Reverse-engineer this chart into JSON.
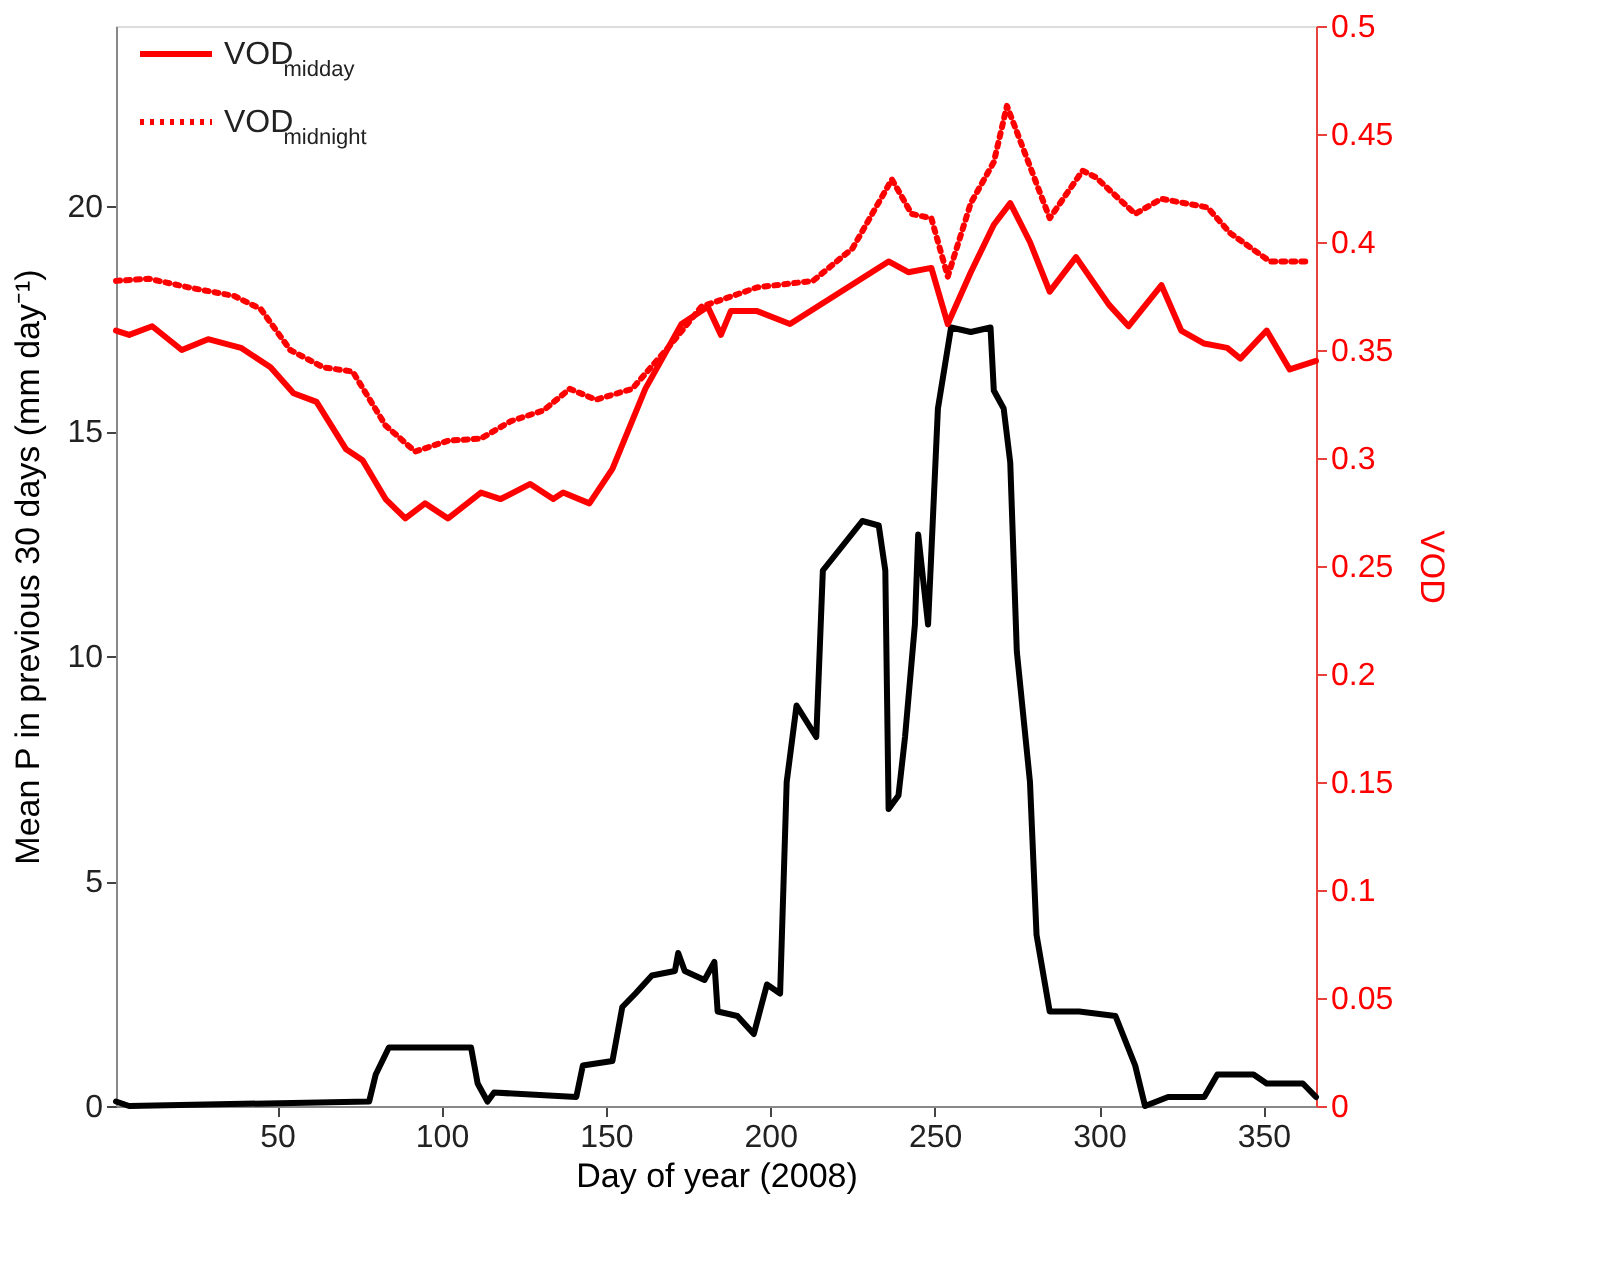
{
  "chart_data": {
    "type": "line",
    "xlabel": "Day of year (2008)",
    "ylabel": "Mean P in previous 30 days (mm day⁻¹)",
    "y2label": "VOD",
    "xlim": [
      1,
      366
    ],
    "xticks": [
      50,
      100,
      150,
      200,
      250,
      300,
      350
    ],
    "ylim": [
      0,
      24
    ],
    "yticks": [
      0,
      5,
      10,
      15,
      20
    ],
    "y2lim": [
      0,
      0.5
    ],
    "y2ticks": [
      0,
      0.05,
      0.1,
      0.15,
      0.2,
      0.25,
      0.3,
      0.35,
      0.4,
      0.45,
      0.5
    ],
    "grid": false,
    "legend": "top left",
    "series": [
      {
        "color": "#000000",
        "axis": "y",
        "line_style": "solid",
        "x": [
          1,
          5,
          78,
          80,
          84,
          109,
          111,
          114,
          116,
          141,
          143,
          152,
          155,
          159,
          164,
          171,
          172,
          174,
          180,
          183,
          184,
          190,
          195,
          199,
          203,
          205,
          208,
          214,
          216,
          228,
          233,
          235,
          236,
          239,
          241,
          244,
          245,
          248,
          251,
          255,
          261,
          267,
          268,
          271,
          273,
          275,
          279,
          281,
          285,
          294,
          305,
          311,
          314,
          321,
          332,
          336,
          347,
          351,
          362,
          366
        ],
        "values": [
          0.1,
          0,
          0.1,
          0.7,
          1.3,
          1.3,
          0.5,
          0.1,
          0.3,
          0.2,
          0.9,
          1.0,
          2.2,
          2.5,
          2.9,
          3.0,
          3.4,
          3.0,
          2.8,
          3.2,
          2.1,
          2.0,
          1.6,
          2.7,
          2.5,
          7.2,
          8.9,
          8.2,
          11.9,
          13.0,
          12.9,
          11.9,
          6.6,
          6.9,
          8.2,
          10.7,
          12.7,
          10.7,
          15.5,
          17.3,
          17.2,
          17.3,
          15.9,
          15.5,
          14.3,
          10.1,
          7.2,
          3.8,
          2.1,
          2.1,
          2.0,
          0.9,
          0,
          0.2,
          0.2,
          0.7,
          0.7,
          0.5,
          0.5,
          0.2
        ]
      },
      {
        "name": "VOD$_{midday}$",
        "color": "#ff0000",
        "axis": "y2",
        "line_style": "solid",
        "x": [
          1,
          5,
          12,
          21,
          29,
          39,
          48,
          55,
          62,
          71,
          76,
          83,
          89,
          95,
          102,
          112,
          118,
          127,
          134,
          137,
          145,
          152,
          162,
          173,
          181,
          185,
          188,
          196,
          206,
          236,
          242,
          249,
          254,
          261,
          268,
          273,
          279,
          285,
          293,
          303,
          309,
          319,
          325,
          332,
          339,
          343,
          351,
          358,
          366
        ],
        "values": [
          0.359,
          0.357,
          0.361,
          0.35,
          0.355,
          0.351,
          0.342,
          0.33,
          0.326,
          0.304,
          0.299,
          0.281,
          0.272,
          0.279,
          0.272,
          0.284,
          0.281,
          0.288,
          0.281,
          0.284,
          0.279,
          0.295,
          0.332,
          0.362,
          0.37,
          0.357,
          0.368,
          0.368,
          0.362,
          0.391,
          0.386,
          0.388,
          0.362,
          0.386,
          0.408,
          0.418,
          0.4,
          0.377,
          0.393,
          0.371,
          0.361,
          0.38,
          0.359,
          0.353,
          0.351,
          0.346,
          0.359,
          0.341,
          0.345
        ]
      },
      {
        "name": "VOD$_{midnight}$",
        "color": "#ff0000",
        "axis": "y2",
        "line_style": "dotted",
        "x": [
          1,
          11,
          23,
          37,
          45,
          54,
          64,
          73,
          83,
          92,
          102,
          112,
          121,
          131,
          139,
          147,
          158,
          170,
          179,
          196,
          213,
          225,
          237,
          243,
          249,
          254,
          261,
          268,
          272,
          285,
          295,
          299,
          311,
          319,
          333,
          340,
          352,
          364
        ],
        "values": [
          0.382,
          0.383,
          0.379,
          0.375,
          0.369,
          0.35,
          0.342,
          0.34,
          0.315,
          0.303,
          0.308,
          0.309,
          0.317,
          0.322,
          0.332,
          0.327,
          0.332,
          0.353,
          0.37,
          0.379,
          0.382,
          0.397,
          0.429,
          0.413,
          0.411,
          0.384,
          0.418,
          0.437,
          0.463,
          0.411,
          0.433,
          0.43,
          0.413,
          0.42,
          0.416,
          0.404,
          0.391,
          0.391
        ]
      }
    ]
  }
}
